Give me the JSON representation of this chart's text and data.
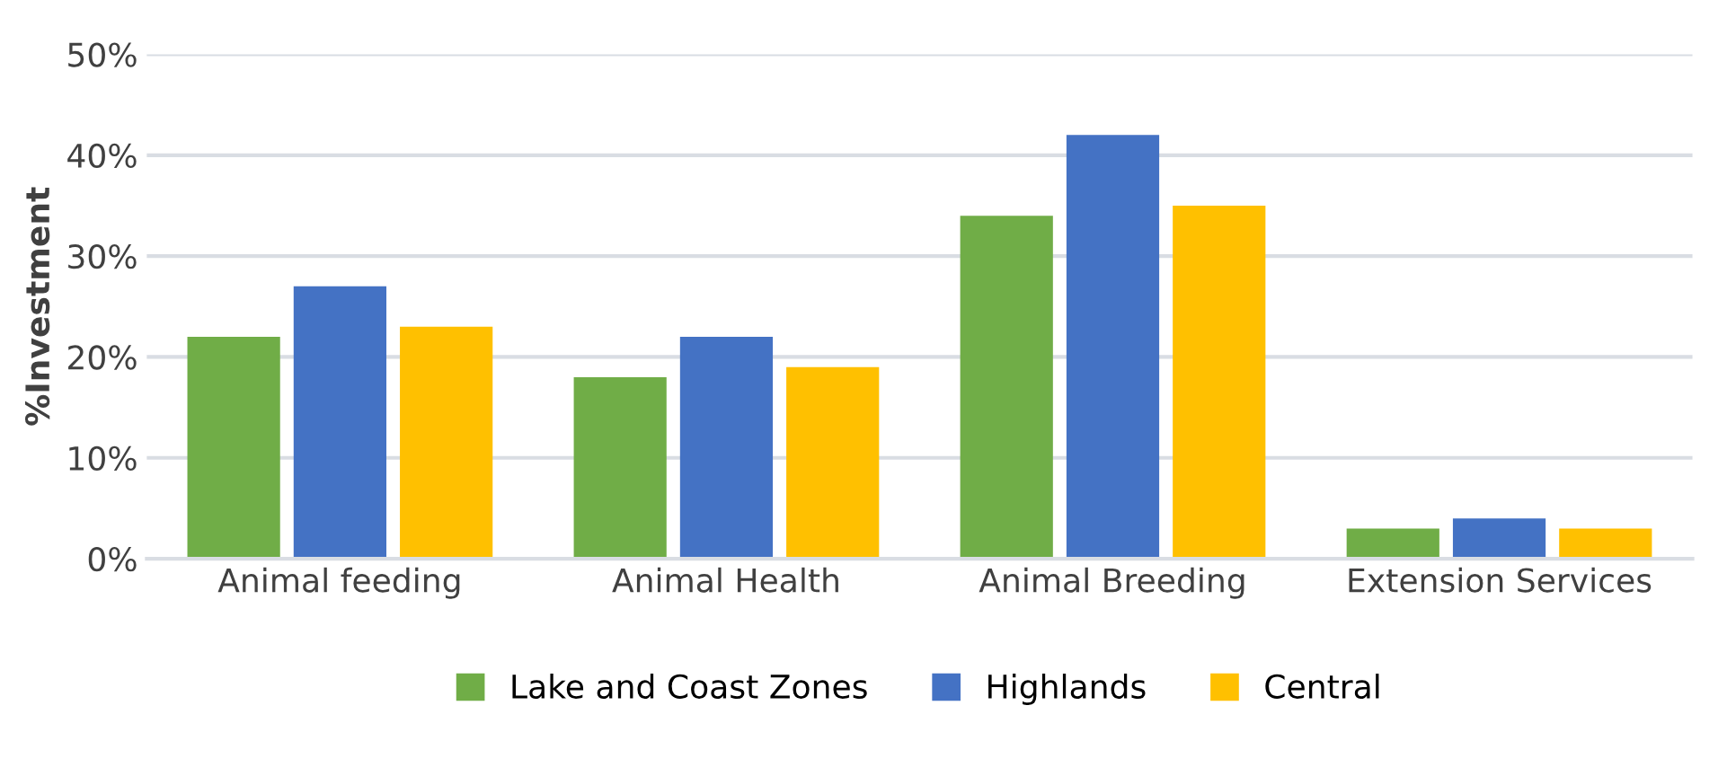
{
  "chart_data": {
    "type": "bar",
    "ylabel": "%Investment",
    "categories": [
      "Animal feeding",
      "Animal Health",
      "Animal Breeding",
      "Extension Services"
    ],
    "series": [
      {
        "name": "Lake and Coast Zones",
        "color": "#70ad47",
        "values": [
          22,
          18,
          34,
          3
        ]
      },
      {
        "name": "Highlands",
        "color": "#4472c4",
        "values": [
          27,
          22,
          42,
          4
        ]
      },
      {
        "name": "Central",
        "color": "#ffc000",
        "values": [
          23,
          19,
          35,
          3
        ]
      }
    ],
    "ylim": [
      0,
      50
    ],
    "yticks": [
      {
        "value": 0,
        "label": "0%"
      },
      {
        "value": 10,
        "label": "10%"
      },
      {
        "value": 20,
        "label": "20%"
      },
      {
        "value": 30,
        "label": "30%"
      },
      {
        "value": 40,
        "label": "40%"
      },
      {
        "value": 50,
        "label": "50%"
      }
    ],
    "grid": "y",
    "legend": "bottom"
  }
}
